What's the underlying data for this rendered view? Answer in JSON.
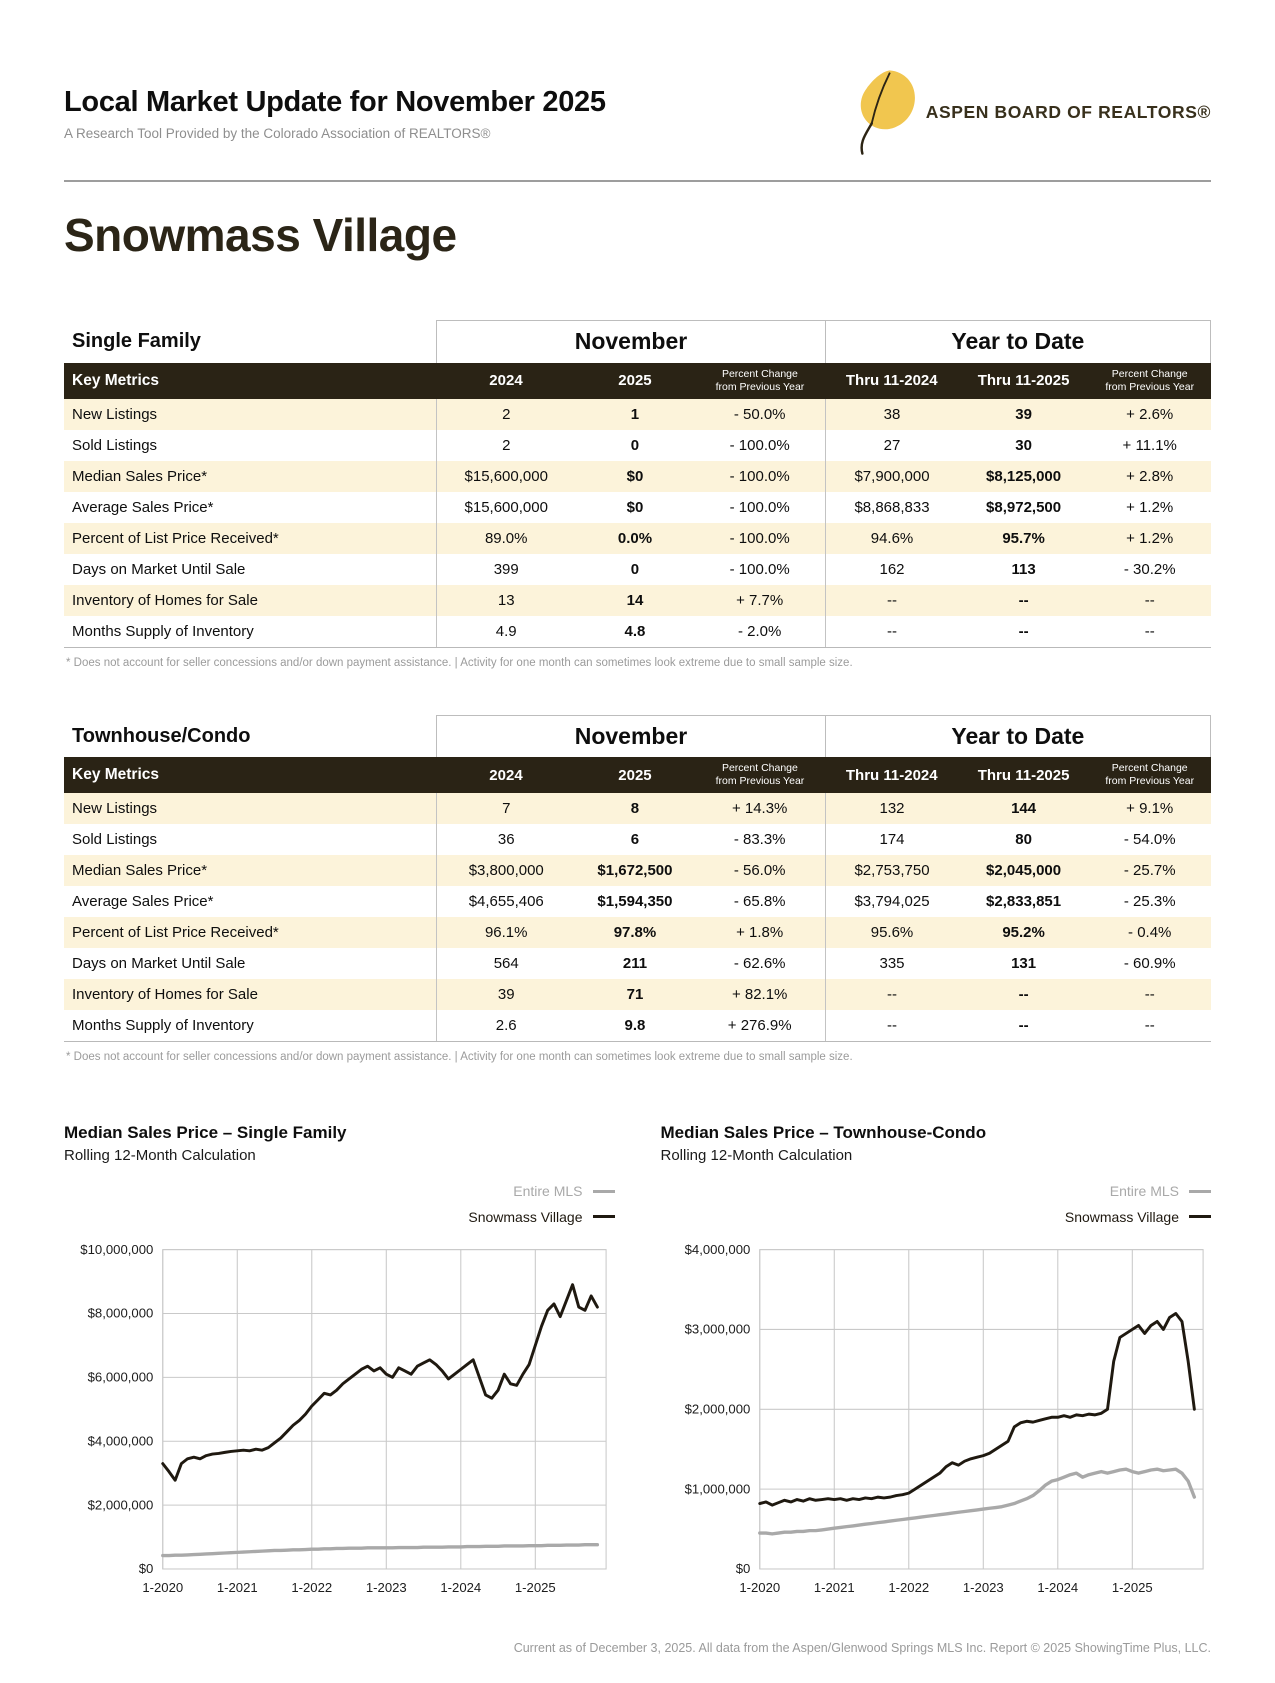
{
  "page": {
    "report_title": "Local Market Update for November 2025",
    "report_subtitle": "A Research Tool Provided by the Colorado Association of REALTORS®",
    "location_title": "Snowmass Village",
    "footer": "Current as of December 3, 2025. All data from the Aspen/Glenwood Springs MLS Inc. Report © 2025 ShowingTime Plus, LLC."
  },
  "logo": {
    "org_name": "ASPEN BOARD OF REALTORS®",
    "leaf_color": "#f1c64f",
    "stem_color": "#2c2414",
    "text_color": "#38301c"
  },
  "tables": [
    {
      "section_title": "Single Family",
      "period_headers": [
        "November",
        "Year to Date"
      ],
      "columns": {
        "key_metrics": "Key Metrics",
        "nov_2024": "2024",
        "nov_2025": "2025",
        "pct_line1": "Percent Change",
        "pct_line2": "from Previous Year",
        "ytd_2024": "Thru 11-2024",
        "ytd_2025": "Thru 11-2025"
      },
      "rows": [
        {
          "metric": "New Listings",
          "values": [
            "2",
            "1",
            "- 50.0%",
            "38",
            "39",
            "+ 2.6%"
          ]
        },
        {
          "metric": "Sold Listings",
          "values": [
            "2",
            "0",
            "- 100.0%",
            "27",
            "30",
            "+ 11.1%"
          ]
        },
        {
          "metric": "Median Sales Price*",
          "values": [
            "$15,600,000",
            "$0",
            "- 100.0%",
            "$7,900,000",
            "$8,125,000",
            "+ 2.8%"
          ]
        },
        {
          "metric": "Average Sales Price*",
          "values": [
            "$15,600,000",
            "$0",
            "- 100.0%",
            "$8,868,833",
            "$8,972,500",
            "+ 1.2%"
          ]
        },
        {
          "metric": "Percent of List Price Received*",
          "values": [
            "89.0%",
            "0.0%",
            "- 100.0%",
            "94.6%",
            "95.7%",
            "+ 1.2%"
          ]
        },
        {
          "metric": "Days on Market Until Sale",
          "values": [
            "399",
            "0",
            "- 100.0%",
            "162",
            "113",
            "- 30.2%"
          ]
        },
        {
          "metric": "Inventory of Homes for Sale",
          "values": [
            "13",
            "14",
            "+ 7.7%",
            "--",
            "--",
            "--"
          ]
        },
        {
          "metric": "Months Supply of Inventory",
          "values": [
            "4.9",
            "4.8",
            "- 2.0%",
            "--",
            "--",
            "--"
          ]
        }
      ],
      "footnote": "* Does not account for seller concessions and/or down payment assistance.  |  Activity for one month can sometimes look extreme due to small sample size."
    },
    {
      "section_title": "Townhouse/Condo",
      "period_headers": [
        "November",
        "Year to Date"
      ],
      "columns": {
        "key_metrics": "Key Metrics",
        "nov_2024": "2024",
        "nov_2025": "2025",
        "pct_line1": "Percent Change",
        "pct_line2": "from Previous Year",
        "ytd_2024": "Thru 11-2024",
        "ytd_2025": "Thru 11-2025"
      },
      "rows": [
        {
          "metric": "New Listings",
          "values": [
            "7",
            "8",
            "+ 14.3%",
            "132",
            "144",
            "+ 9.1%"
          ]
        },
        {
          "metric": "Sold Listings",
          "values": [
            "36",
            "6",
            "- 83.3%",
            "174",
            "80",
            "- 54.0%"
          ]
        },
        {
          "metric": "Median Sales Price*",
          "values": [
            "$3,800,000",
            "$1,672,500",
            "- 56.0%",
            "$2,753,750",
            "$2,045,000",
            "- 25.7%"
          ]
        },
        {
          "metric": "Average Sales Price*",
          "values": [
            "$4,655,406",
            "$1,594,350",
            "- 65.8%",
            "$3,794,025",
            "$2,833,851",
            "- 25.3%"
          ]
        },
        {
          "metric": "Percent of List Price Received*",
          "values": [
            "96.1%",
            "97.8%",
            "+ 1.8%",
            "95.6%",
            "95.2%",
            "- 0.4%"
          ]
        },
        {
          "metric": "Days on Market Until Sale",
          "values": [
            "564",
            "211",
            "- 62.6%",
            "335",
            "131",
            "- 60.9%"
          ]
        },
        {
          "metric": "Inventory of Homes for Sale",
          "values": [
            "39",
            "71",
            "+ 82.1%",
            "--",
            "--",
            "--"
          ]
        },
        {
          "metric": "Months Supply of Inventory",
          "values": [
            "2.6",
            "9.8",
            "+ 276.9%",
            "--",
            "--",
            "--"
          ]
        }
      ],
      "footnote": "* Does not account for seller concessions and/or down payment assistance.  |  Activity for one month can sometimes look extreme due to small sample size."
    }
  ],
  "chart_data": [
    {
      "type": "line",
      "title": "Median Sales Price – Single Family",
      "subtitle": "Rolling 12-Month Calculation",
      "svg_name": "single-family-median-price-chart",
      "x_domain": [
        2020,
        2025.95
      ],
      "x_ticks": [
        2020,
        2021,
        2022,
        2023,
        2024,
        2025
      ],
      "x_tick_labels": [
        "1-2020",
        "1-2021",
        "1-2022",
        "1-2023",
        "1-2024",
        "1-2025"
      ],
      "ylim_m": [
        0,
        10
      ],
      "ytick_step_m": 2,
      "ytick_labels": [
        "$0",
        "$2,000,000",
        "$4,000,000",
        "$6,000,000",
        "$8,000,000",
        "$10,000,000"
      ],
      "grid": true,
      "legend_position": "top-right",
      "series": [
        {
          "name": "Entire MLS",
          "color": "#a9a9a9",
          "width": 3.2,
          "values_m": [
            0.42,
            0.42,
            0.43,
            0.43,
            0.44,
            0.45,
            0.46,
            0.47,
            0.48,
            0.49,
            0.5,
            0.51,
            0.52,
            0.53,
            0.54,
            0.55,
            0.56,
            0.57,
            0.58,
            0.58,
            0.59,
            0.6,
            0.6,
            0.61,
            0.62,
            0.62,
            0.63,
            0.63,
            0.64,
            0.64,
            0.65,
            0.65,
            0.65,
            0.66,
            0.66,
            0.66,
            0.66,
            0.66,
            0.67,
            0.67,
            0.67,
            0.67,
            0.68,
            0.68,
            0.68,
            0.68,
            0.69,
            0.69,
            0.69,
            0.7,
            0.7,
            0.7,
            0.71,
            0.71,
            0.71,
            0.72,
            0.72,
            0.72,
            0.72,
            0.73,
            0.73,
            0.73,
            0.74,
            0.74,
            0.74,
            0.75,
            0.75,
            0.75,
            0.76,
            0.76,
            0.76
          ]
        },
        {
          "name": "Snowmass Village",
          "color": "#1f1910",
          "width": 2.8,
          "values_m": [
            3.3,
            3.05,
            2.78,
            3.3,
            3.45,
            3.5,
            3.45,
            3.55,
            3.6,
            3.62,
            3.65,
            3.68,
            3.7,
            3.72,
            3.7,
            3.75,
            3.72,
            3.8,
            3.95,
            4.1,
            4.3,
            4.5,
            4.65,
            4.85,
            5.1,
            5.3,
            5.5,
            5.45,
            5.6,
            5.8,
            5.95,
            6.1,
            6.25,
            6.35,
            6.2,
            6.3,
            6.1,
            6.0,
            6.3,
            6.2,
            6.1,
            6.35,
            6.45,
            6.55,
            6.4,
            6.2,
            5.95,
            6.1,
            6.25,
            6.4,
            6.55,
            6.0,
            5.45,
            5.35,
            5.6,
            6.1,
            5.8,
            5.75,
            6.1,
            6.4,
            7.0,
            7.6,
            8.1,
            8.3,
            7.9,
            8.4,
            8.9,
            8.2,
            8.1,
            8.55,
            8.2
          ]
        }
      ]
    },
    {
      "type": "line",
      "title": "Median Sales Price – Townhouse-Condo",
      "subtitle": "Rolling 12-Month Calculation",
      "svg_name": "townhouse-condo-median-price-chart",
      "x_domain": [
        2020,
        2025.95
      ],
      "x_ticks": [
        2020,
        2021,
        2022,
        2023,
        2024,
        2025
      ],
      "x_tick_labels": [
        "1-2020",
        "1-2021",
        "1-2022",
        "1-2023",
        "1-2024",
        "1-2025"
      ],
      "ylim_m": [
        0,
        4
      ],
      "ytick_step_m": 1,
      "ytick_labels": [
        "$0",
        "$1,000,000",
        "$2,000,000",
        "$3,000,000",
        "$4,000,000"
      ],
      "grid": true,
      "legend_position": "top-right",
      "series": [
        {
          "name": "Entire MLS",
          "color": "#a9a9a9",
          "width": 3.2,
          "values_m": [
            0.45,
            0.45,
            0.44,
            0.45,
            0.46,
            0.46,
            0.47,
            0.47,
            0.48,
            0.48,
            0.49,
            0.5,
            0.51,
            0.52,
            0.53,
            0.54,
            0.55,
            0.56,
            0.57,
            0.58,
            0.59,
            0.6,
            0.61,
            0.62,
            0.63,
            0.64,
            0.65,
            0.66,
            0.67,
            0.68,
            0.69,
            0.7,
            0.71,
            0.72,
            0.73,
            0.74,
            0.75,
            0.76,
            0.77,
            0.78,
            0.8,
            0.82,
            0.85,
            0.88,
            0.92,
            0.98,
            1.05,
            1.1,
            1.12,
            1.15,
            1.18,
            1.2,
            1.15,
            1.18,
            1.2,
            1.22,
            1.2,
            1.22,
            1.24,
            1.25,
            1.22,
            1.2,
            1.22,
            1.24,
            1.25,
            1.23,
            1.24,
            1.25,
            1.2,
            1.1,
            0.9
          ]
        },
        {
          "name": "Snowmass Village",
          "color": "#1f1910",
          "width": 2.8,
          "values_m": [
            0.82,
            0.84,
            0.8,
            0.83,
            0.86,
            0.84,
            0.87,
            0.85,
            0.88,
            0.86,
            0.87,
            0.88,
            0.87,
            0.88,
            0.86,
            0.88,
            0.87,
            0.89,
            0.88,
            0.9,
            0.89,
            0.9,
            0.92,
            0.93,
            0.95,
            1.0,
            1.05,
            1.1,
            1.15,
            1.2,
            1.28,
            1.33,
            1.3,
            1.35,
            1.38,
            1.4,
            1.42,
            1.45,
            1.5,
            1.55,
            1.6,
            1.78,
            1.83,
            1.85,
            1.84,
            1.86,
            1.88,
            1.9,
            1.9,
            1.92,
            1.9,
            1.93,
            1.92,
            1.94,
            1.93,
            1.95,
            2.0,
            2.6,
            2.9,
            2.95,
            3.0,
            3.05,
            2.95,
            3.05,
            3.1,
            3.0,
            3.15,
            3.2,
            3.1,
            2.6,
            2.0
          ]
        }
      ]
    }
  ]
}
